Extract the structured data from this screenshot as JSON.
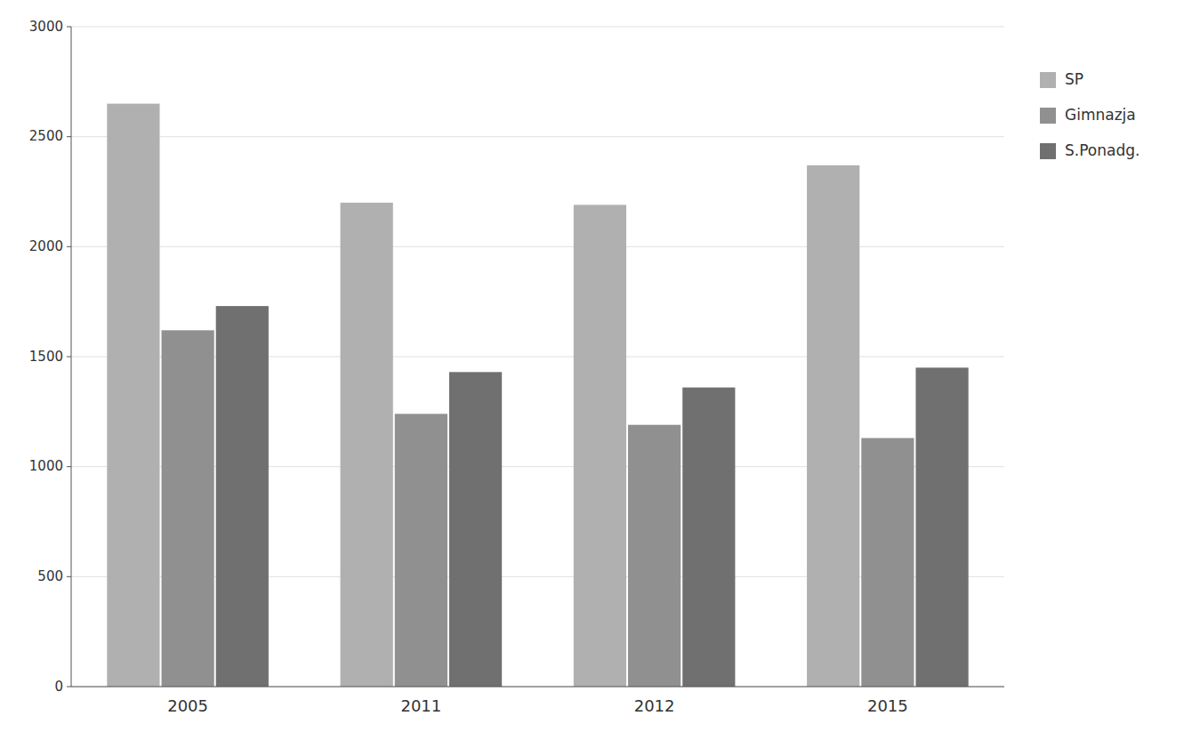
{
  "chart_data": {
    "type": "bar",
    "categories": [
      "2005",
      "2011",
      "2012",
      "2015"
    ],
    "series": [
      {
        "name": "SP",
        "color": "#b0b0b0",
        "values": [
          2650,
          2200,
          2190,
          2370
        ]
      },
      {
        "name": "Gimnazja",
        "color": "#909090",
        "values": [
          1620,
          1240,
          1190,
          1130
        ]
      },
      {
        "name": "S.Ponadg.",
        "color": "#707070",
        "values": [
          1730,
          1430,
          1360,
          1450
        ]
      }
    ],
    "ylim": [
      0,
      3000
    ],
    "yticks": [
      0,
      500,
      1000,
      1500,
      2000,
      2500,
      3000
    ],
    "grid": true,
    "legend": "right"
  }
}
